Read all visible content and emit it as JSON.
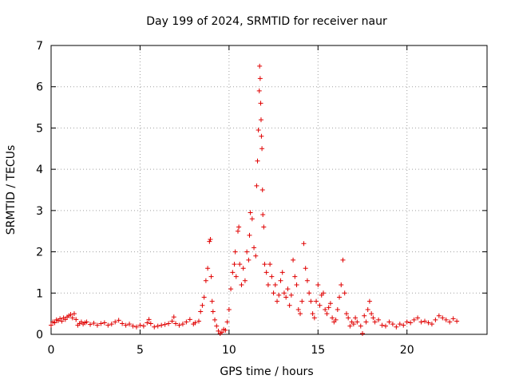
{
  "chart_data": {
    "type": "scatter",
    "title": "Day 199 of 2024, SRMTID for receiver naur",
    "xlabel": "GPS time / hours",
    "ylabel": "SRMTID / TECUs",
    "xlim": [
      0,
      24.5
    ],
    "ylim": [
      0,
      7
    ],
    "xticks": [
      0,
      5,
      10,
      15,
      20
    ],
    "xtick_labels": [
      "0",
      "5",
      "10",
      "15",
      "20"
    ],
    "yticks": [
      0,
      1,
      2,
      3,
      4,
      5,
      6,
      7
    ],
    "ytick_labels": [
      "0",
      "1",
      "2",
      "3",
      "4",
      "5",
      "6",
      "7"
    ],
    "grid": true,
    "marker": "+",
    "series": [
      {
        "name": "naur",
        "color": "#e00000",
        "points": [
          [
            0.0,
            0.22
          ],
          [
            0.1,
            0.3
          ],
          [
            0.2,
            0.28
          ],
          [
            0.3,
            0.35
          ],
          [
            0.4,
            0.33
          ],
          [
            0.5,
            0.38
          ],
          [
            0.6,
            0.32
          ],
          [
            0.7,
            0.4
          ],
          [
            0.8,
            0.36
          ],
          [
            0.9,
            0.42
          ],
          [
            1.0,
            0.45
          ],
          [
            1.1,
            0.48
          ],
          [
            1.2,
            0.4
          ],
          [
            1.3,
            0.5
          ],
          [
            1.4,
            0.36
          ],
          [
            1.5,
            0.22
          ],
          [
            1.6,
            0.26
          ],
          [
            1.7,
            0.3
          ],
          [
            1.8,
            0.25
          ],
          [
            1.9,
            0.28
          ],
          [
            2.0,
            0.3
          ],
          [
            2.2,
            0.24
          ],
          [
            2.4,
            0.27
          ],
          [
            2.6,
            0.22
          ],
          [
            2.8,
            0.26
          ],
          [
            3.0,
            0.28
          ],
          [
            3.2,
            0.22
          ],
          [
            3.4,
            0.25
          ],
          [
            3.6,
            0.3
          ],
          [
            3.8,
            0.34
          ],
          [
            4.0,
            0.26
          ],
          [
            4.2,
            0.22
          ],
          [
            4.4,
            0.25
          ],
          [
            4.6,
            0.2
          ],
          [
            4.8,
            0.18
          ],
          [
            5.0,
            0.22
          ],
          [
            5.2,
            0.2
          ],
          [
            5.4,
            0.28
          ],
          [
            5.5,
            0.36
          ],
          [
            5.6,
            0.26
          ],
          [
            5.8,
            0.18
          ],
          [
            6.0,
            0.2
          ],
          [
            6.2,
            0.22
          ],
          [
            6.4,
            0.24
          ],
          [
            6.6,
            0.26
          ],
          [
            6.8,
            0.32
          ],
          [
            6.9,
            0.42
          ],
          [
            7.0,
            0.26
          ],
          [
            7.2,
            0.22
          ],
          [
            7.4,
            0.25
          ],
          [
            7.6,
            0.3
          ],
          [
            7.8,
            0.36
          ],
          [
            8.0,
            0.25
          ],
          [
            8.1,
            0.28
          ],
          [
            8.3,
            0.32
          ],
          [
            8.4,
            0.55
          ],
          [
            8.5,
            0.7
          ],
          [
            8.6,
            0.9
          ],
          [
            8.7,
            1.3
          ],
          [
            8.8,
            1.6
          ],
          [
            8.9,
            2.25
          ],
          [
            8.95,
            2.3
          ],
          [
            9.0,
            1.4
          ],
          [
            9.05,
            0.8
          ],
          [
            9.1,
            0.55
          ],
          [
            9.2,
            0.35
          ],
          [
            9.3,
            0.2
          ],
          [
            9.4,
            0.08
          ],
          [
            9.5,
            0.02
          ],
          [
            9.6,
            0.05
          ],
          [
            9.7,
            0.12
          ],
          [
            9.8,
            0.1
          ],
          [
            9.9,
            0.3
          ],
          [
            10.0,
            0.6
          ],
          [
            10.1,
            1.1
          ],
          [
            10.2,
            1.5
          ],
          [
            10.3,
            1.7
          ],
          [
            10.35,
            2.0
          ],
          [
            10.4,
            1.4
          ],
          [
            10.5,
            2.5
          ],
          [
            10.55,
            2.6
          ],
          [
            10.6,
            1.7
          ],
          [
            10.7,
            1.2
          ],
          [
            10.8,
            1.6
          ],
          [
            10.9,
            1.3
          ],
          [
            11.0,
            2.0
          ],
          [
            11.1,
            1.8
          ],
          [
            11.15,
            2.4
          ],
          [
            11.2,
            2.95
          ],
          [
            11.3,
            2.8
          ],
          [
            11.4,
            2.1
          ],
          [
            11.5,
            1.9
          ],
          [
            11.55,
            3.6
          ],
          [
            11.6,
            4.2
          ],
          [
            11.65,
            4.95
          ],
          [
            11.7,
            5.9
          ],
          [
            11.72,
            6.5
          ],
          [
            11.75,
            6.2
          ],
          [
            11.78,
            5.6
          ],
          [
            11.8,
            5.2
          ],
          [
            11.82,
            4.8
          ],
          [
            11.85,
            4.5
          ],
          [
            11.88,
            3.5
          ],
          [
            11.9,
            2.9
          ],
          [
            11.95,
            2.6
          ],
          [
            12.0,
            1.7
          ],
          [
            12.1,
            1.5
          ],
          [
            12.2,
            1.2
          ],
          [
            12.3,
            1.7
          ],
          [
            12.4,
            1.4
          ],
          [
            12.5,
            1.0
          ],
          [
            12.6,
            1.2
          ],
          [
            12.7,
            0.8
          ],
          [
            12.8,
            0.95
          ],
          [
            12.9,
            1.3
          ],
          [
            13.0,
            1.5
          ],
          [
            13.1,
            1.0
          ],
          [
            13.2,
            0.9
          ],
          [
            13.3,
            1.1
          ],
          [
            13.4,
            0.7
          ],
          [
            13.5,
            0.95
          ],
          [
            13.6,
            1.8
          ],
          [
            13.7,
            1.4
          ],
          [
            13.8,
            1.2
          ],
          [
            13.9,
            0.6
          ],
          [
            14.0,
            0.5
          ],
          [
            14.1,
            0.8
          ],
          [
            14.2,
            2.2
          ],
          [
            14.3,
            1.6
          ],
          [
            14.4,
            1.3
          ],
          [
            14.5,
            1.0
          ],
          [
            14.6,
            0.8
          ],
          [
            14.7,
            0.5
          ],
          [
            14.8,
            0.4
          ],
          [
            14.9,
            0.8
          ],
          [
            15.0,
            1.2
          ],
          [
            15.1,
            0.7
          ],
          [
            15.2,
            0.95
          ],
          [
            15.3,
            1.0
          ],
          [
            15.4,
            0.6
          ],
          [
            15.5,
            0.5
          ],
          [
            15.6,
            0.65
          ],
          [
            15.7,
            0.75
          ],
          [
            15.8,
            0.4
          ],
          [
            15.9,
            0.3
          ],
          [
            16.0,
            0.35
          ],
          [
            16.1,
            0.6
          ],
          [
            16.2,
            0.9
          ],
          [
            16.3,
            1.2
          ],
          [
            16.4,
            1.8
          ],
          [
            16.5,
            1.0
          ],
          [
            16.6,
            0.5
          ],
          [
            16.7,
            0.4
          ],
          [
            16.8,
            0.2
          ],
          [
            16.9,
            0.3
          ],
          [
            17.0,
            0.25
          ],
          [
            17.1,
            0.4
          ],
          [
            17.2,
            0.3
          ],
          [
            17.4,
            0.2
          ],
          [
            17.5,
            0.02
          ],
          [
            17.6,
            0.45
          ],
          [
            17.7,
            0.3
          ],
          [
            17.8,
            0.6
          ],
          [
            17.9,
            0.8
          ],
          [
            18.0,
            0.5
          ],
          [
            18.1,
            0.4
          ],
          [
            18.2,
            0.3
          ],
          [
            18.4,
            0.35
          ],
          [
            18.6,
            0.22
          ],
          [
            18.8,
            0.2
          ],
          [
            19.0,
            0.3
          ],
          [
            19.2,
            0.25
          ],
          [
            19.4,
            0.18
          ],
          [
            19.6,
            0.25
          ],
          [
            19.8,
            0.22
          ],
          [
            20.0,
            0.3
          ],
          [
            20.2,
            0.28
          ],
          [
            20.4,
            0.35
          ],
          [
            20.6,
            0.4
          ],
          [
            20.8,
            0.3
          ],
          [
            21.0,
            0.32
          ],
          [
            21.2,
            0.28
          ],
          [
            21.4,
            0.25
          ],
          [
            21.6,
            0.35
          ],
          [
            21.8,
            0.45
          ],
          [
            22.0,
            0.4
          ],
          [
            22.2,
            0.35
          ],
          [
            22.4,
            0.3
          ],
          [
            22.6,
            0.38
          ],
          [
            22.8,
            0.32
          ]
        ]
      }
    ]
  }
}
